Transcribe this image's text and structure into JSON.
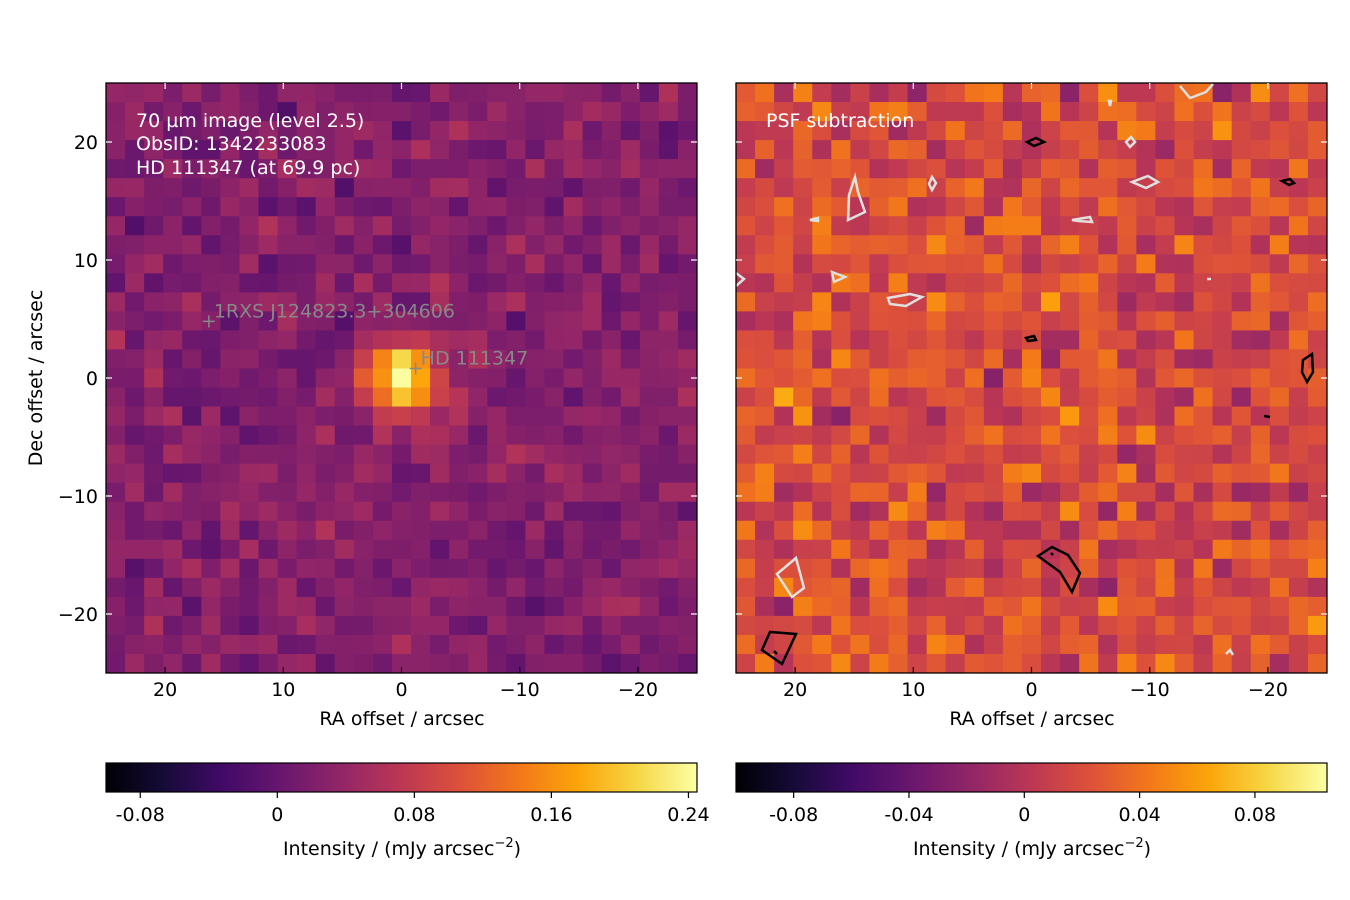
{
  "chart_data": [
    {
      "type": "heatmap",
      "panel": "left",
      "annotation_lines": [
        "70 µm image (level 2.5)",
        "ObsID: 1342233083",
        "HD 111347 (at 69.9 pc)"
      ],
      "xlabel": "RA offset / arcsec",
      "ylabel": "Dec offset / arcsec",
      "xlim": [
        25,
        -25
      ],
      "ylim": [
        -25,
        25
      ],
      "xticks": [
        20,
        10,
        0,
        -10,
        -20
      ],
      "xtick_labels": [
        "20",
        "10",
        "0",
        "−10",
        "−20"
      ],
      "yticks": [
        20,
        10,
        0,
        -10,
        -20
      ],
      "ytick_labels": [
        "20",
        "10",
        "0",
        "−10",
        "−20"
      ],
      "colormap": "inferno",
      "pixel_grid": [
        31,
        31
      ],
      "markers": [
        {
          "label": "1RXS J124823.3+304606",
          "x": 16.3,
          "y": 4.8
        },
        {
          "label": "HD 111347",
          "x": -1.2,
          "y": 0.8
        }
      ],
      "bright_source": {
        "x": 0,
        "y": 0
      },
      "colorbar": {
        "label": "Intensity / (mJy arcsec",
        "label_exponent": "−2",
        "label_suffix": ")",
        "range": [
          -0.1,
          0.245
        ],
        "ticks": [
          -0.08,
          0,
          0.08,
          0.16,
          0.24
        ],
        "tick_labels": [
          "-0.08",
          "0",
          "0.08",
          "0.16",
          "0.24"
        ]
      }
    },
    {
      "type": "heatmap",
      "panel": "right",
      "annotation_lines": [
        "PSF subtraction"
      ],
      "xlabel": "RA offset / arcsec",
      "xlim": [
        25,
        -25
      ],
      "ylim": [
        -25,
        25
      ],
      "xticks": [
        20,
        10,
        0,
        -10,
        -20
      ],
      "xtick_labels": [
        "20",
        "10",
        "0",
        "−10",
        "−20"
      ],
      "colormap": "inferno",
      "pixel_grid": [
        31,
        31
      ],
      "contours": {
        "positive_color": "#000000",
        "negative_color": "#e0e0e0"
      },
      "colorbar": {
        "label": "Intensity / (mJy arcsec",
        "label_exponent": "−2",
        "label_suffix": ")",
        "range": [
          -0.1,
          0.105
        ],
        "ticks": [
          -0.08,
          -0.04,
          0,
          0.04,
          0.08
        ],
        "tick_labels": [
          "-0.08",
          "-0.04",
          "0",
          "0.04",
          "0.08"
        ]
      }
    }
  ]
}
